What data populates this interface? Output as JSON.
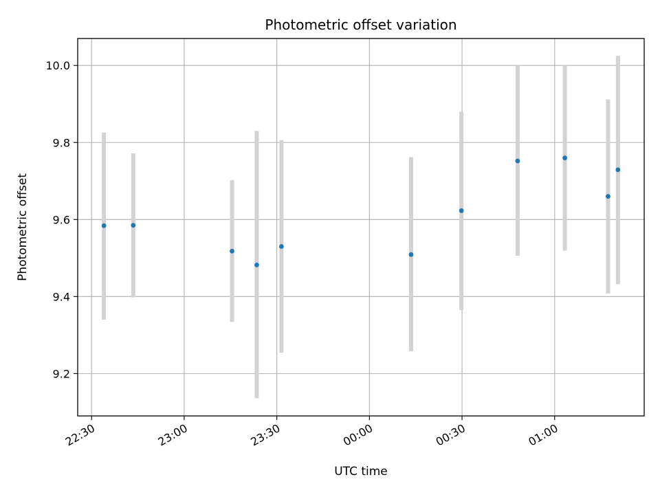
{
  "chart_data": {
    "type": "scatter",
    "title": "Photometric offset variation",
    "xlabel": "UTC time",
    "ylabel": "Photometric offset",
    "x_tick_labels": [
      "22:30",
      "23:00",
      "23:30",
      "00:00",
      "00:30",
      "01:00"
    ],
    "y_tick_labels": [
      "9.2",
      "9.4",
      "9.6",
      "9.8",
      "10.0"
    ],
    "x_tick_minutes": [
      0,
      30,
      60,
      90,
      120,
      150
    ],
    "y_ticks": [
      9.2,
      9.4,
      9.6,
      9.8,
      10.0
    ],
    "xlim_minutes": [
      -4.5,
      179
    ],
    "ylim": [
      9.09,
      10.07
    ],
    "grid": true,
    "x_unit": "minutes after 22:30 UTC",
    "marker_color": "#1f77b4",
    "errorbar_color": "#d3d3d3",
    "series": [
      {
        "points": [
          {
            "x": 4.0,
            "y": 9.584,
            "lo": 9.34,
            "hi": 9.826
          },
          {
            "x": 13.5,
            "y": 9.585,
            "lo": 9.398,
            "hi": 9.772
          },
          {
            "x": 45.5,
            "y": 9.518,
            "lo": 9.334,
            "hi": 9.702
          },
          {
            "x": 53.5,
            "y": 9.482,
            "lo": 9.136,
            "hi": 9.83
          },
          {
            "x": 61.5,
            "y": 9.53,
            "lo": 9.254,
            "hi": 9.806
          },
          {
            "x": 103.5,
            "y": 9.509,
            "lo": 9.258,
            "hi": 9.762
          },
          {
            "x": 119.8,
            "y": 9.623,
            "lo": 9.365,
            "hi": 9.88
          },
          {
            "x": 138.0,
            "y": 9.752,
            "lo": 9.506,
            "hi": 10.0
          },
          {
            "x": 153.3,
            "y": 9.76,
            "lo": 9.519,
            "hi": 10.0
          },
          {
            "x": 167.3,
            "y": 9.66,
            "lo": 9.408,
            "hi": 9.912
          },
          {
            "x": 170.5,
            "y": 9.729,
            "lo": 9.432,
            "hi": 10.025
          }
        ]
      }
    ]
  }
}
